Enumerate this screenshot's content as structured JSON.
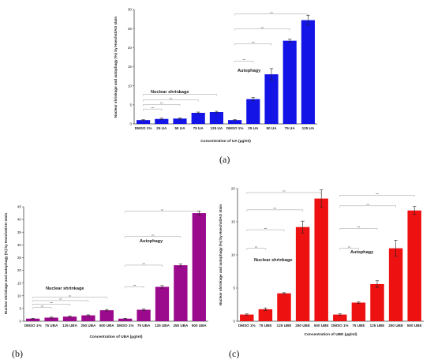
{
  "chart_data": [
    {
      "type": "bar",
      "panel": "(a)",
      "color": "#1414e6",
      "categories": [
        "DMSO 1%",
        "25 UA",
        "50 UA",
        "75 UA",
        "125 UA",
        "DMSO 1%",
        "25 UA",
        "50 UA",
        "75 UA",
        "125 UA"
      ],
      "values": [
        1.0,
        1.3,
        1.4,
        2.9,
        3.1,
        1.0,
        6.5,
        13.0,
        21.8,
        27.2
      ],
      "errors": [
        0.1,
        0.2,
        0.2,
        0.2,
        0.2,
        0.1,
        0.4,
        1.5,
        0.4,
        1.3
      ],
      "ylabel": "Nuclear shrinkage and autophagy (%) by Hoechst/AO stain",
      "xlabel": "Concentration of UA (µg/ml)",
      "ylim": [
        0,
        30
      ],
      "yticks": [
        0,
        5,
        10,
        15,
        20,
        25,
        30
      ],
      "annotations": [
        "Nuclear shrinkage",
        "Autophagy"
      ]
    },
    {
      "type": "bar",
      "panel": "(b)",
      "color": "#9b0a8c",
      "categories": [
        "DMSO 1%",
        "75 UBA",
        "125 UBA",
        "250 UBA",
        "500 UBA",
        "DMSO 1%",
        "75 UBA",
        "125 UBA",
        "250 UBA",
        "500 UBA"
      ],
      "values": [
        1.0,
        1.4,
        1.8,
        2.3,
        4.3,
        1.0,
        4.5,
        13.5,
        22.0,
        42.5
      ],
      "errors": [
        0.1,
        0.2,
        0.2,
        0.2,
        0.3,
        0.1,
        0.3,
        0.5,
        0.5,
        0.8
      ],
      "ylabel": "Nuclear shrinkage and autophagy (%) by Hoechst/AO stain",
      "xlabel": "Concentration of UBA (µg/ml)",
      "ylim": [
        0,
        45
      ],
      "yticks": [
        0,
        5,
        10,
        15,
        20,
        25,
        30,
        35,
        40,
        45
      ],
      "annotations": [
        "Nuclear shrinkage",
        "Autophagy"
      ]
    },
    {
      "type": "bar",
      "panel": "(c)",
      "color": "#ee1111",
      "categories": [
        "DMSO 1%",
        "75 UBE",
        "125 UBE",
        "250 UBE",
        "500 UBE",
        "DMSO 1%",
        "75 UBE",
        "125 UBE",
        "250 UBE",
        "500 UBE"
      ],
      "values": [
        1.0,
        1.8,
        4.2,
        14.2,
        18.5,
        1.0,
        2.8,
        5.6,
        11.0,
        16.7
      ],
      "errors": [
        0.1,
        0.2,
        0.1,
        0.9,
        1.3,
        0.1,
        0.1,
        0.5,
        1.2,
        0.6
      ],
      "ylabel": "Nuclear shrinkage and autophagy (%) by Hoechst/AO stain",
      "xlabel": "Concentration of UBE (µg/ml)",
      "ylim": [
        0,
        20
      ],
      "yticks": [
        0,
        5,
        10,
        15,
        20
      ],
      "annotations": [
        "Nuclear shrinkage",
        "Autophagy"
      ]
    }
  ]
}
